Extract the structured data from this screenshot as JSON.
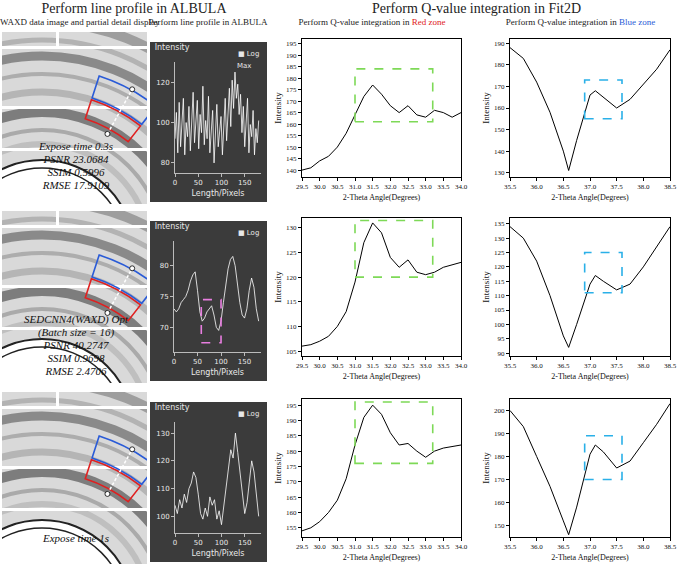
{
  "headers": {
    "left": "Perform line profile in ALBULA",
    "right": "Perform Q-value integration in Fit2D"
  },
  "column_titles": [
    {
      "text": "WAXD data image and partial detail display"
    },
    {
      "text": "Perform line profile in ALBULA"
    },
    {
      "text": "Perform Q-value integration in",
      "zone": "Red zone",
      "zone_color": "#e02020"
    },
    {
      "text": "Perform Q-value integration in",
      "zone": "Blue zone",
      "zone_color": "#2a5bd7"
    }
  ],
  "images": [
    {
      "lines": [
        "Expose time 0.3s",
        "PSNR 23.0684",
        "SSIM 0.5996",
        "RMSE 17.9109"
      ]
    },
    {
      "lines": [
        "SEDCNN4(WAXD) Opt",
        "(Batch size = 16)",
        "PSNR 40.2747",
        "SSIM 0.9698",
        "RMSE 2.4706"
      ]
    },
    {
      "lines": [
        "Expose time 1s"
      ]
    }
  ],
  "chart_data": [
    {
      "type": "line",
      "title": "Intensity",
      "x_label": "Length/Pixels",
      "color": "#ffffff",
      "x": [
        0,
        3,
        6,
        9,
        12,
        15,
        18,
        21,
        24,
        27,
        30,
        33,
        36,
        39,
        42,
        45,
        48,
        51,
        54,
        57,
        60,
        63,
        66,
        69,
        72,
        75,
        78,
        81,
        84,
        87,
        90,
        93,
        96,
        99,
        102,
        105,
        108,
        111,
        114,
        117,
        120,
        123,
        126,
        129,
        132,
        135,
        138,
        141,
        144,
        147,
        150,
        153,
        156,
        159,
        162,
        165,
        168,
        171,
        174,
        177,
        180
      ],
      "values": [
        92,
        105,
        85,
        110,
        88,
        98,
        112,
        84,
        100,
        93,
        108,
        86,
        102,
        115,
        90,
        99,
        111,
        87,
        104,
        95,
        118,
        89,
        101,
        92,
        113,
        85,
        97,
        106,
        80,
        99,
        109,
        88,
        96,
        103,
        84,
        100,
        112,
        91,
        105,
        117,
        98,
        121,
        107,
        125,
        112,
        119,
        104,
        114,
        95,
        108,
        88,
        103,
        112,
        85,
        99,
        93,
        106,
        84,
        97,
        90,
        101
      ],
      "xlim": [
        0,
        185
      ],
      "xticks": [
        0,
        50,
        100,
        150
      ],
      "ylim": [
        75,
        130
      ],
      "yticks": [
        80,
        100,
        120
      ],
      "annotations": [
        {
          "text": "■ Log"
        },
        {
          "text": "Max",
          "x": 129,
          "y": 125
        }
      ]
    },
    {
      "type": "line",
      "x_label": "2-Theta Angle(Degrees)",
      "y_label": "Intensity",
      "color": "#000000",
      "x": [
        29.5,
        29.75,
        30,
        30.25,
        30.5,
        30.75,
        31,
        31.25,
        31.5,
        31.75,
        32,
        32.25,
        32.5,
        32.75,
        33,
        33.25,
        33.5,
        33.75,
        34
      ],
      "values": [
        140,
        141,
        144,
        146,
        150,
        156,
        164,
        172,
        177,
        173,
        168,
        165,
        168,
        164,
        163,
        166,
        165,
        163,
        165
      ],
      "xlim": [
        29.5,
        34.0
      ],
      "xticks": [
        29.5,
        {
          "value": 30,
          "label": "30.0"
        },
        30.5,
        {
          "value": 31,
          "label": "31.0"
        },
        31.5,
        {
          "value": 32,
          "label": "32.0"
        },
        32.5,
        {
          "value": 33,
          "label": "33.0"
        },
        33.5,
        {
          "value": 34,
          "label": "34.0"
        }
      ],
      "ylim": [
        137,
        197
      ],
      "yticks": [
        140,
        145,
        150,
        155,
        160,
        165,
        170,
        175,
        180,
        185,
        190,
        195
      ],
      "highlight": {
        "x": [
          31.0,
          33.2
        ],
        "y": [
          161,
          184
        ],
        "color": "#7ed957",
        "line_style": "dash"
      }
    },
    {
      "type": "line",
      "x_label": "2-Theta Angle(Degrees)",
      "y_label": "Intensity",
      "color": "#000000",
      "x": [
        35.5,
        35.75,
        36,
        36.25,
        36.5,
        36.6,
        36.75,
        37,
        37.1,
        37.25,
        37.5,
        37.75,
        38,
        38.25,
        38.5
      ],
      "values": [
        188,
        183,
        172,
        158,
        140,
        131,
        145,
        166,
        168,
        165,
        160,
        164,
        171,
        178,
        187
      ],
      "xlim": [
        35.5,
        38.5
      ],
      "xticks": [
        35.5,
        {
          "value": 36,
          "label": "36.0"
        },
        36.5,
        {
          "value": 37,
          "label": "37.0"
        },
        37.5,
        {
          "value": 38,
          "label": "38.0"
        },
        38.5
      ],
      "ylim": [
        128,
        192
      ],
      "yticks": [
        130,
        140,
        150,
        160,
        170,
        180,
        190
      ],
      "highlight": {
        "x": [
          36.9,
          37.6
        ],
        "y": [
          155,
          173
        ],
        "color": "#2ab0e8",
        "line_style": "dash"
      }
    },
    {
      "type": "line",
      "title": "Intensity",
      "x_label": "Length/Pixels",
      "color": "#ffffff",
      "x": [
        0,
        5,
        10,
        15,
        20,
        25,
        30,
        35,
        40,
        45,
        50,
        55,
        60,
        65,
        70,
        75,
        80,
        85,
        90,
        95,
        100,
        105,
        110,
        115,
        120,
        125,
        130,
        135,
        140,
        145,
        150,
        155,
        160,
        165,
        170,
        175,
        180
      ],
      "values": [
        73,
        72.5,
        73,
        74,
        74.5,
        75,
        76,
        77.5,
        78.5,
        79,
        76,
        72.5,
        71,
        71.5,
        72.5,
        73,
        73.5,
        72,
        70,
        69.5,
        71,
        74,
        77,
        79.5,
        81,
        81.5,
        80,
        77,
        74,
        72,
        71.5,
        73,
        76,
        78,
        76.5,
        73,
        71
      ],
      "xlim": [
        0,
        185
      ],
      "xticks": [
        0,
        50,
        100,
        150
      ],
      "ylim": [
        66,
        84
      ],
      "yticks": [
        70,
        75,
        80
      ],
      "annotations": [
        {
          "text": "■ Log"
        }
      ],
      "highlight": {
        "x": [
          58,
          100
        ],
        "y": [
          67.5,
          74.5
        ],
        "color": "#e87ee0",
        "line_style": "dash"
      }
    },
    {
      "type": "line",
      "x_label": "2-Theta Angle(Degrees)",
      "y_label": "Intensity",
      "color": "#000000",
      "x": [
        29.5,
        29.75,
        30,
        30.25,
        30.5,
        30.75,
        31,
        31.25,
        31.5,
        31.75,
        32,
        32.25,
        32.5,
        32.75,
        33,
        33.25,
        33.5,
        33.75,
        34
      ],
      "values": [
        106,
        106.3,
        107,
        108,
        110,
        113,
        119,
        127,
        131,
        129,
        124,
        122,
        123.5,
        121,
        120.5,
        121,
        122,
        122.5,
        123
      ],
      "xlim": [
        29.5,
        34.0
      ],
      "xticks": [
        29.5,
        {
          "value": 30,
          "label": "30.0"
        },
        30.5,
        {
          "value": 31,
          "label": "31.0"
        },
        31.5,
        {
          "value": 32,
          "label": "32.0"
        },
        32.5,
        {
          "value": 33,
          "label": "33.0"
        },
        33.5,
        {
          "value": 34,
          "label": "34.0"
        }
      ],
      "ylim": [
        104,
        132
      ],
      "yticks": [
        105,
        110,
        115,
        120,
        125,
        130
      ],
      "highlight": {
        "x": [
          31.0,
          33.2
        ],
        "y": [
          120,
          131.5
        ],
        "color": "#7ed957",
        "line_style": "dash"
      }
    },
    {
      "type": "line",
      "x_label": "2-Theta Angle(Degrees)",
      "y_label": "Intensity",
      "color": "#000000",
      "x": [
        35.5,
        35.75,
        36,
        36.25,
        36.5,
        36.6,
        36.75,
        37,
        37.1,
        37.25,
        37.5,
        37.75,
        38,
        38.25,
        38.5
      ],
      "values": [
        134,
        130,
        122,
        110,
        96,
        92,
        100,
        114,
        117,
        115,
        112,
        114,
        120,
        127,
        134
      ],
      "xlim": [
        35.5,
        38.5
      ],
      "xticks": [
        35.5,
        {
          "value": 36,
          "label": "36.0"
        },
        36.5,
        {
          "value": 37,
          "label": "37.0"
        },
        37.5,
        {
          "value": 38,
          "label": "38.0"
        },
        38.5
      ],
      "ylim": [
        89,
        137
      ],
      "yticks": [
        90,
        95,
        100,
        105,
        110,
        115,
        120,
        125,
        130,
        135
      ],
      "highlight": {
        "x": [
          36.9,
          37.6
        ],
        "y": [
          111,
          125
        ],
        "color": "#2ab0e8",
        "line_style": "dash"
      }
    },
    {
      "type": "line",
      "title": "Intensity",
      "x_label": "Length/Pixels",
      "color": "#ffffff",
      "x": [
        0,
        5,
        10,
        15,
        20,
        25,
        30,
        35,
        40,
        45,
        50,
        55,
        60,
        65,
        70,
        75,
        80,
        85,
        90,
        95,
        100,
        105,
        110,
        115,
        120,
        125,
        130,
        135,
        140,
        145,
        150,
        155,
        160,
        165,
        170,
        175,
        180
      ],
      "values": [
        104,
        101,
        106,
        103,
        108,
        105,
        110,
        112,
        116,
        114,
        108,
        101,
        99,
        103,
        100,
        107,
        104,
        106,
        99,
        102,
        97,
        104,
        112,
        118,
        124,
        121,
        130,
        123,
        115,
        108,
        101,
        105,
        112,
        120,
        116,
        107,
        100
      ],
      "xlim": [
        0,
        185
      ],
      "xticks": [
        0,
        50,
        100,
        150
      ],
      "ylim": [
        94,
        134
      ],
      "yticks": [
        100,
        110,
        120,
        130
      ],
      "annotations": [
        {
          "text": "■ Log"
        }
      ]
    },
    {
      "type": "line",
      "x_label": "2-Theta Angle(Degrees)",
      "y_label": "Intensity",
      "color": "#000000",
      "x": [
        29.5,
        29.75,
        30,
        30.25,
        30.5,
        30.75,
        31,
        31.25,
        31.5,
        31.75,
        32,
        32.25,
        32.5,
        32.75,
        33,
        33.25,
        33.5,
        33.75,
        34
      ],
      "values": [
        154,
        155,
        157,
        160,
        164,
        171,
        182,
        191,
        195,
        192,
        186,
        182,
        182.5,
        180,
        178,
        180,
        181,
        181.5,
        182
      ],
      "xlim": [
        29.5,
        34.0
      ],
      "xticks": [
        29.5,
        {
          "value": 30,
          "label": "30.0"
        },
        30.5,
        {
          "value": 31,
          "label": "31.0"
        },
        31.5,
        {
          "value": 32,
          "label": "32.0"
        },
        32.5,
        {
          "value": 33,
          "label": "33.0"
        },
        33.5,
        {
          "value": 34,
          "label": "34.0"
        }
      ],
      "ylim": [
        152,
        197
      ],
      "yticks": [
        155,
        160,
        165,
        170,
        175,
        180,
        185,
        190,
        195
      ],
      "highlight": {
        "x": [
          31.0,
          33.2
        ],
        "y": [
          176,
          196
        ],
        "color": "#7ed957",
        "line_style": "dash"
      }
    },
    {
      "type": "line",
      "x_label": "2-Theta Angle(Degrees)",
      "y_label": "Intensity",
      "color": "#000000",
      "x": [
        35.5,
        35.75,
        36,
        36.25,
        36.5,
        36.6,
        36.75,
        37,
        37.1,
        37.25,
        37.5,
        37.75,
        38,
        38.25,
        38.5
      ],
      "values": [
        200,
        193,
        180,
        167,
        152,
        146,
        158,
        181,
        185,
        182,
        175,
        178,
        186,
        194,
        203
      ],
      "xlim": [
        35.5,
        38.5
      ],
      "xticks": [
        35.5,
        {
          "value": 36,
          "label": "36.0"
        },
        36.5,
        {
          "value": 37,
          "label": "37.0"
        },
        37.5,
        {
          "value": 38,
          "label": "38.0"
        },
        38.5
      ],
      "ylim": [
        145,
        205
      ],
      "yticks": [
        150,
        160,
        170,
        180,
        190,
        200
      ],
      "highlight": {
        "x": [
          36.9,
          37.6
        ],
        "y": [
          170,
          189
        ],
        "color": "#2ab0e8",
        "line_style": "dash"
      }
    }
  ]
}
